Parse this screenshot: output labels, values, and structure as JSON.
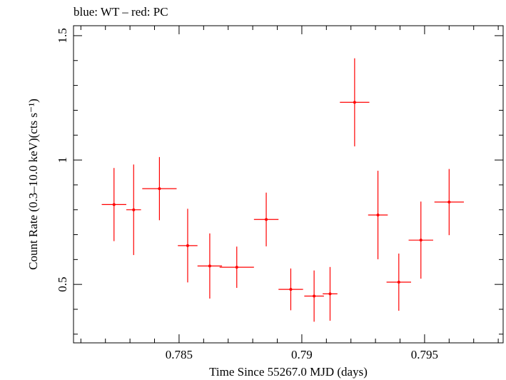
{
  "chart_data": {
    "type": "scatter",
    "title": "blue: WT – red: PC",
    "xlabel": "Time Since 55267.0 MJD (days)",
    "ylabel": "Count Rate (0.3–10.0 keV)(cts s⁻¹)",
    "xlim": [
      0.7807,
      0.7982
    ],
    "ylim": [
      0.265,
      1.54
    ],
    "x_ticks": [
      {
        "value": 0.785,
        "label": "0.785"
      },
      {
        "value": 0.79,
        "label": "0.79"
      },
      {
        "value": 0.795,
        "label": "0.795"
      }
    ],
    "y_ticks": [
      {
        "value": 0.5,
        "label": "0.5"
      },
      {
        "value": 1.0,
        "label": "1"
      },
      {
        "value": 1.5,
        "label": "1.5"
      }
    ],
    "grid": false,
    "series": [
      {
        "color": "#ff0000",
        "points": [
          {
            "x": 0.78235,
            "xerr": 0.0005,
            "y": 0.821,
            "yerr": 0.147
          },
          {
            "x": 0.78315,
            "xerr": 0.0003,
            "y": 0.8,
            "yerr": 0.182
          },
          {
            "x": 0.7842,
            "xerr": 0.0007,
            "y": 0.885,
            "yerr": 0.127
          },
          {
            "x": 0.78535,
            "xerr": 0.0004,
            "y": 0.656,
            "yerr": 0.148
          },
          {
            "x": 0.78625,
            "xerr": 0.0005,
            "y": 0.574,
            "yerr": 0.131
          },
          {
            "x": 0.78735,
            "xerr": 0.0007,
            "y": 0.569,
            "yerr": 0.083
          },
          {
            "x": 0.78855,
            "xerr": 0.0005,
            "y": 0.761,
            "yerr": 0.108
          },
          {
            "x": 0.78955,
            "xerr": 0.0005,
            "y": 0.48,
            "yerr": 0.084
          },
          {
            "x": 0.7905,
            "xerr": 0.0004,
            "y": 0.453,
            "yerr": 0.103
          },
          {
            "x": 0.79115,
            "xerr": 0.0003,
            "y": 0.462,
            "yerr": 0.108
          },
          {
            "x": 0.79215,
            "xerr": 0.0006,
            "y": 1.232,
            "yerr": 0.177
          },
          {
            "x": 0.7931,
            "xerr": 0.0004,
            "y": 0.779,
            "yerr": 0.178
          },
          {
            "x": 0.79395,
            "xerr": 0.0005,
            "y": 0.509,
            "yerr": 0.115
          },
          {
            "x": 0.79485,
            "xerr": 0.0005,
            "y": 0.678,
            "yerr": 0.155
          },
          {
            "x": 0.796,
            "xerr": 0.0006,
            "y": 0.831,
            "yerr": 0.133
          }
        ]
      }
    ]
  }
}
